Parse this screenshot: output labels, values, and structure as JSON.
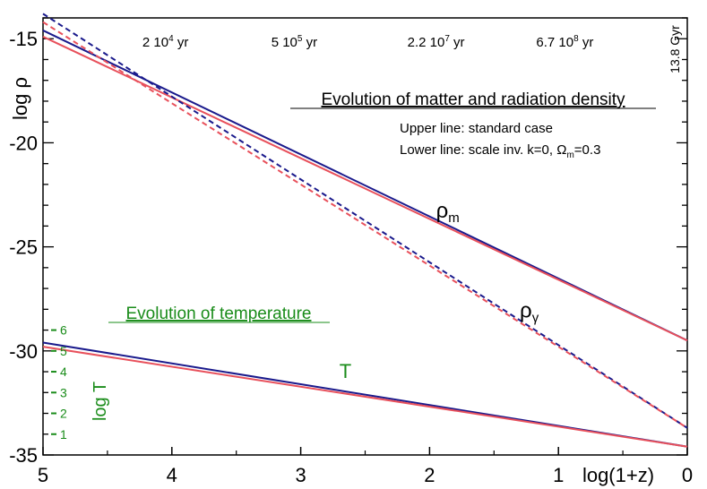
{
  "chart_data": {
    "type": "line",
    "title": "Evolution of matter and radiation density",
    "notes": {
      "upper": "Upper line: standard case",
      "lower_prefix": "Lower line:  scale inv.  k=0, ",
      "lower_omega": "Ω",
      "lower_omega_sub": "m",
      "lower_suffix": "=0.3"
    },
    "xlabel": "log(1+z)",
    "ylabel": "log ρ",
    "xlim": [
      5,
      0
    ],
    "ylim": [
      -35,
      -14
    ],
    "x_ticks": [
      5,
      4,
      3,
      2,
      1,
      0
    ],
    "x_tick_labels": [
      "5",
      "4",
      "3",
      "2",
      "1",
      "0"
    ],
    "y_ticks": [
      -15,
      -20,
      -25,
      -30,
      -35
    ],
    "y_tick_labels": [
      "-15",
      "-20",
      "-25",
      "-30",
      "-35"
    ],
    "time_labels": [
      {
        "x": 4.05,
        "base": "2 10",
        "exp": "4",
        "unit": " yr"
      },
      {
        "x": 3.05,
        "base": "5 10",
        "exp": "5",
        "unit": " yr"
      },
      {
        "x": 1.95,
        "base": "2.2 10",
        "exp": "7",
        "unit": " yr"
      },
      {
        "x": 0.95,
        "base": "6.7 10",
        "exp": "8",
        "unit": " yr"
      }
    ],
    "age_label": "13.8 Gyr",
    "series_labels": {
      "rho_m": {
        "base": "ρ",
        "sub": "m",
        "x": 1.95,
        "y": -23.6
      },
      "rho_gamma": {
        "base": "ρ",
        "sub": "γ",
        "x": 1.3,
        "y": -28.4
      },
      "T": {
        "text": "T",
        "x": 2.7,
        "y": -31.3
      }
    },
    "series": [
      {
        "name": "rho_m standard",
        "style": "solid",
        "color": "#1a1a8c",
        "x": [
          5,
          0
        ],
        "y": [
          -14.6,
          -29.5
        ]
      },
      {
        "name": "rho_m scale inv.",
        "style": "solid",
        "color": "#e8505b",
        "x": [
          5,
          0
        ],
        "y": [
          -14.9,
          -29.5
        ]
      },
      {
        "name": "rho_gamma standard",
        "style": "dashed",
        "color": "#1a1a8c",
        "x": [
          5,
          0
        ],
        "y": [
          -13.8,
          -33.7
        ]
      },
      {
        "name": "rho_gamma scale inv.",
        "style": "dashed",
        "color": "#e8505b",
        "x": [
          5,
          0
        ],
        "y": [
          -14.2,
          -33.7
        ]
      },
      {
        "name": "T standard",
        "style": "solid",
        "color": "#1a1a8c",
        "x": [
          5,
          0
        ],
        "y": [
          -29.6,
          -34.6
        ]
      },
      {
        "name": "T scale inv.",
        "style": "solid",
        "color": "#e8505b",
        "x": [
          5,
          0
        ],
        "y": [
          -29.8,
          -34.6
        ]
      }
    ],
    "temperature": {
      "title": "Evolution of temperature",
      "label": "log T",
      "ticks": [
        1,
        2,
        3,
        4,
        5,
        6
      ],
      "tick_labels": [
        "1",
        "2",
        "3",
        "4",
        "5",
        "6"
      ],
      "mapping": {
        "t1": 1,
        "rho_at_t1": -34.0,
        "t6": 6,
        "rho_at_t6": -29.0
      },
      "color": "#1a8c1a"
    }
  }
}
